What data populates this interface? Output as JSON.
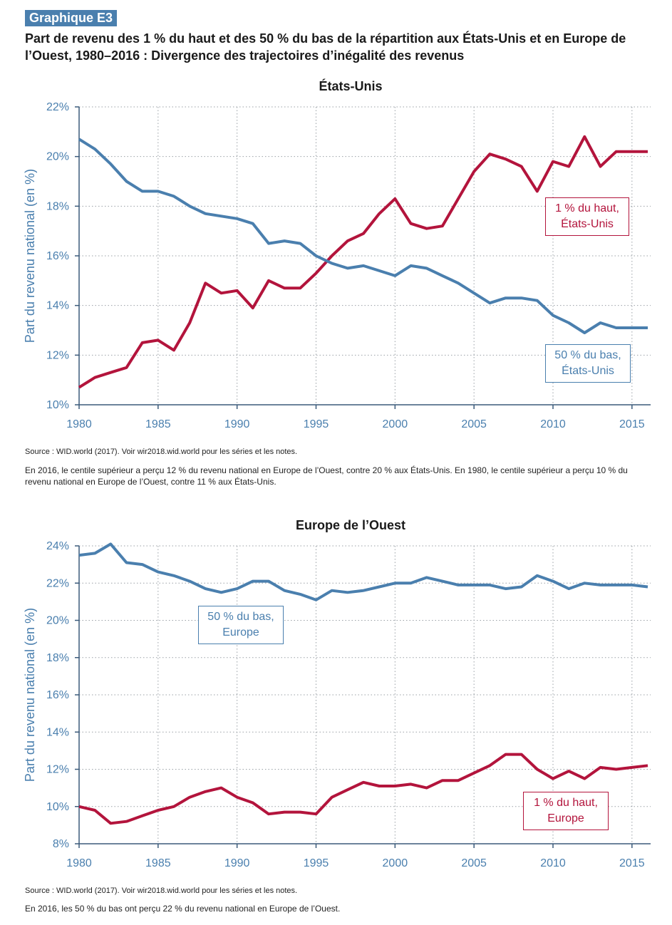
{
  "header": {
    "badge": "Graphique E3",
    "title": "Part de revenu des 1 % du haut et des 50 % du bas de la répartition aux États-Unis et en Europe de l’Ouest, 1980–2016 : Divergence des trajectoires d’inégalité des revenus"
  },
  "colors": {
    "top1": "#b3143c",
    "bottom50": "#4a7fae",
    "grid": "#9aa0a6"
  },
  "panels": [
    {
      "source": "Source : WID.world (2017). Voir wir2018.wid.world pour les séries et les notes.",
      "note": "En 2016, le centile supérieur a perçu 12 % du revenu national en Europe de l’Ouest, contre 20 % aux États-Unis. En 1980, le centile supérieur a perçu 10 % du revenu national en Europe de l’Ouest, contre 11 % aux États-Unis.",
      "labels": {
        "top1": "1 % du haut,\nÉtats-Unis",
        "bottom50": "50 % du bas,\nÉtats-Unis"
      }
    },
    {
      "source": "Source : WID.world (2017). Voir wir2018.wid.world pour les séries et les notes.",
      "note": "En 2016, les 50 % du bas ont perçu 22 % du revenu national en Europe de l’Ouest.",
      "labels": {
        "top1": "1 % du haut,\nEurope",
        "bottom50": "50 % du bas,\nEurope"
      }
    }
  ],
  "chart_data": [
    {
      "type": "line",
      "title": "États-Unis",
      "ylabel": "Part du revenu national (en %)",
      "xlabel": "",
      "xlim": [
        1980,
        2016
      ],
      "ylim": [
        10,
        22
      ],
      "xticks": [
        1980,
        1985,
        1990,
        1995,
        2000,
        2005,
        2010,
        2015
      ],
      "yticks": [
        10,
        12,
        14,
        16,
        18,
        20,
        22
      ],
      "ytick_labels": [
        "10%",
        "12%",
        "14%",
        "16%",
        "18%",
        "20%",
        "22%"
      ],
      "grid": true,
      "x": [
        1980,
        1981,
        1982,
        1983,
        1984,
        1985,
        1986,
        1987,
        1988,
        1989,
        1990,
        1991,
        1992,
        1993,
        1994,
        1995,
        1996,
        1997,
        1998,
        1999,
        2000,
        2001,
        2002,
        2003,
        2004,
        2005,
        2006,
        2007,
        2008,
        2009,
        2010,
        2011,
        2012,
        2013,
        2014,
        2015,
        2016
      ],
      "series": [
        {
          "name": "1 % du haut, États-Unis",
          "color": "#b3143c",
          "values": [
            10.7,
            11.1,
            11.3,
            11.5,
            12.5,
            12.6,
            12.2,
            13.3,
            14.9,
            14.5,
            14.6,
            13.9,
            15.0,
            14.7,
            14.7,
            15.3,
            16.0,
            16.6,
            16.9,
            17.7,
            18.3,
            17.3,
            17.1,
            17.2,
            18.3,
            19.4,
            20.1,
            19.9,
            19.6,
            18.6,
            19.8,
            19.6,
            20.8,
            19.6,
            20.2,
            20.2,
            20.2
          ]
        },
        {
          "name": "50 % du bas, États-Unis",
          "color": "#4a7fae",
          "values": [
            20.7,
            20.3,
            19.7,
            19.0,
            18.6,
            18.6,
            18.4,
            18.0,
            17.7,
            17.6,
            17.5,
            17.3,
            16.5,
            16.6,
            16.5,
            16.0,
            15.7,
            15.5,
            15.6,
            15.4,
            15.2,
            15.6,
            15.5,
            15.2,
            14.9,
            14.5,
            14.1,
            14.3,
            14.3,
            14.2,
            13.6,
            13.3,
            12.9,
            13.3,
            13.1,
            13.1,
            13.1
          ]
        }
      ]
    },
    {
      "type": "line",
      "title": "Europe de l’Ouest",
      "ylabel": "Part du revenu national (en %)",
      "xlabel": "",
      "xlim": [
        1980,
        2016
      ],
      "ylim": [
        8,
        24
      ],
      "xticks": [
        1980,
        1985,
        1990,
        1995,
        2000,
        2005,
        2010,
        2015
      ],
      "yticks": [
        8,
        10,
        12,
        14,
        16,
        18,
        20,
        22,
        24
      ],
      "ytick_labels": [
        "8%",
        "10%",
        "12%",
        "14%",
        "16%",
        "18%",
        "20%",
        "22%",
        "24%"
      ],
      "grid": true,
      "x": [
        1980,
        1981,
        1982,
        1983,
        1984,
        1985,
        1986,
        1987,
        1988,
        1989,
        1990,
        1991,
        1992,
        1993,
        1994,
        1995,
        1996,
        1997,
        1998,
        1999,
        2000,
        2001,
        2002,
        2003,
        2004,
        2005,
        2006,
        2007,
        2008,
        2009,
        2010,
        2011,
        2012,
        2013,
        2014,
        2015,
        2016
      ],
      "series": [
        {
          "name": "1 % du haut, Europe",
          "color": "#b3143c",
          "values": [
            10.0,
            9.8,
            9.1,
            9.2,
            9.5,
            9.8,
            10.0,
            10.5,
            10.8,
            11.0,
            10.5,
            10.2,
            9.6,
            9.7,
            9.7,
            9.6,
            10.5,
            10.9,
            11.3,
            11.1,
            11.1,
            11.2,
            11.0,
            11.4,
            11.4,
            11.8,
            12.2,
            12.8,
            12.8,
            12.0,
            11.5,
            11.9,
            11.5,
            12.1,
            12.0,
            12.1,
            12.2
          ]
        },
        {
          "name": "50 % du bas, Europe",
          "color": "#4a7fae",
          "values": [
            23.5,
            23.6,
            24.1,
            23.1,
            23.0,
            22.6,
            22.4,
            22.1,
            21.7,
            21.5,
            21.7,
            22.1,
            22.1,
            21.6,
            21.4,
            21.1,
            21.6,
            21.5,
            21.6,
            21.8,
            22.0,
            22.0,
            22.3,
            22.1,
            21.9,
            21.9,
            21.9,
            21.7,
            21.8,
            22.4,
            22.1,
            21.7,
            22.0,
            21.9,
            21.9,
            21.9,
            21.8
          ]
        }
      ]
    }
  ]
}
